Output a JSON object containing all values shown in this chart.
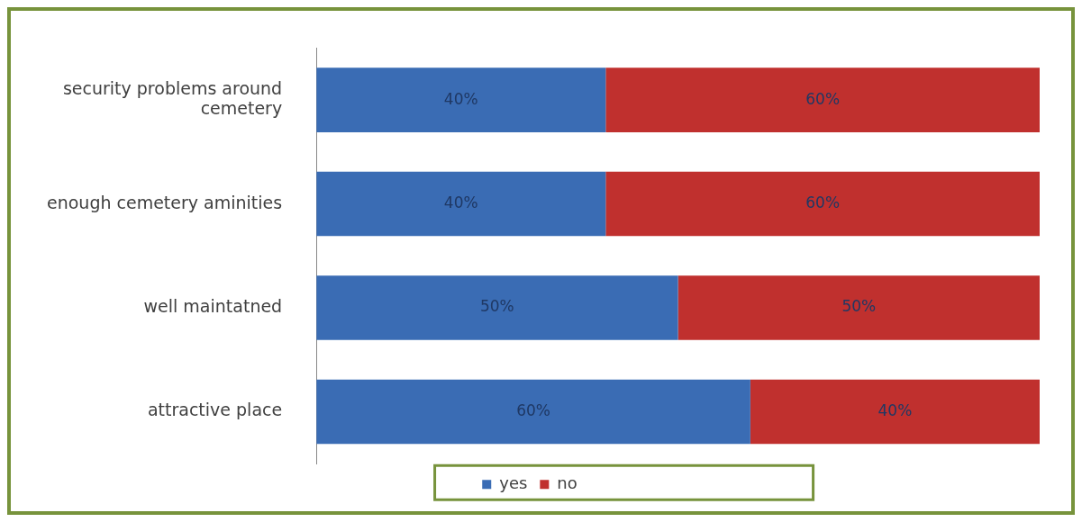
{
  "chart_data": {
    "type": "bar",
    "orientation": "horizontal",
    "stacked": true,
    "categories": [
      "security problems around cemetery",
      "enough cemetery aminities",
      "well maintatned",
      "attractive place"
    ],
    "series": [
      {
        "name": "yes",
        "color": "#3a6cb4",
        "values": [
          40,
          40,
          50,
          60
        ],
        "value_labels": [
          "40%",
          "40%",
          "50%",
          "60%"
        ]
      },
      {
        "name": "no",
        "color": "#c0302e",
        "values": [
          60,
          60,
          50,
          40
        ],
        "value_labels": [
          "60%",
          "60%",
          "50%",
          "40%"
        ]
      }
    ],
    "xlim": [
      0,
      100
    ],
    "tick_labels": "y",
    "grid": false,
    "legend": "bottom"
  }
}
